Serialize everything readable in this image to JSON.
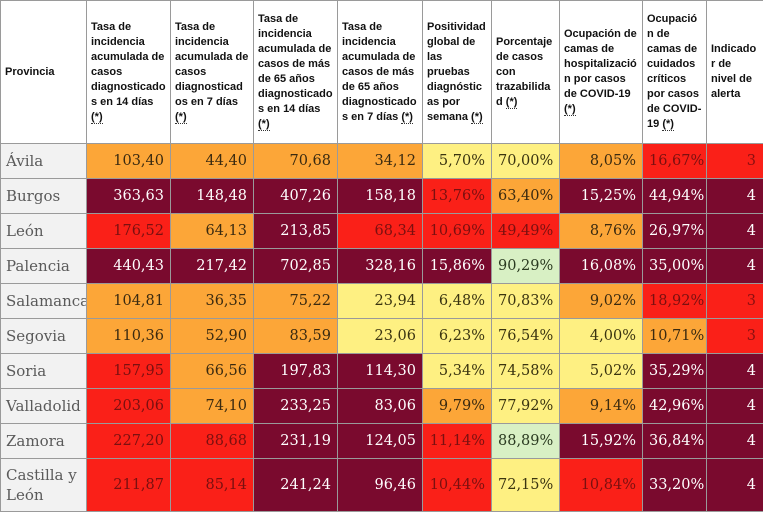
{
  "headers": {
    "provincia": "Provincia",
    "c1_text": "Tasa de incidencia acumulada de casos diagnosticados en 14 días",
    "c2_text": "Tasa de incidencia acumulada de casos diagnosticados en 7 días",
    "c3_text": "Tasa de incidencia acumulada de casos de más de 65 años diagnosticados en 14 días",
    "c4_text": "Tasa de incidencia acumulada de casos de más de 65 años diagnosticados en 7 días",
    "c5_text": "Positividad global de las pruebas diagnósticas por semana",
    "c6_text": "Porcentaje de casos con trazabilidad",
    "c7_text": "Ocupación de camas de hospitalización por casos de COVID-19",
    "c8_text": "Ocupación de camas de cuidados críticos por casos de COVID-19",
    "c9_text": "Indicador de nivel de alerta",
    "ref": "(*)"
  },
  "rows": [
    {
      "provincia": "Ávila",
      "c1": "103,40",
      "c2": "44,40",
      "c3": "70,68",
      "c4": "34,12",
      "c5": "5,70%",
      "c6": "70,00%",
      "c7": "8,05%",
      "c8": "16,67%",
      "ind": "3"
    },
    {
      "provincia": "Burgos",
      "c1": "363,63",
      "c2": "148,48",
      "c3": "407,26",
      "c4": "158,18",
      "c5": "13,76%",
      "c6": "63,40%",
      "c7": "15,25%",
      "c8": "44,94%",
      "ind": "4"
    },
    {
      "provincia": "León",
      "c1": "176,52",
      "c2": "64,13",
      "c3": "213,85",
      "c4": "68,34",
      "c5": "10,69%",
      "c6": "49,49%",
      "c7": "8,76%",
      "c8": "26,97%",
      "ind": "4"
    },
    {
      "provincia": "Palencia",
      "c1": "440,43",
      "c2": "217,42",
      "c3": "702,85",
      "c4": "328,16",
      "c5": "15,86%",
      "c6": "90,29%",
      "c7": "16,08%",
      "c8": "35,00%",
      "ind": "4"
    },
    {
      "provincia": "Salamanca",
      "c1": "104,81",
      "c2": "36,35",
      "c3": "75,22",
      "c4": "23,94",
      "c5": "6,48%",
      "c6": "70,83%",
      "c7": "9,02%",
      "c8": "18,92%",
      "ind": "3"
    },
    {
      "provincia": "Segovia",
      "c1": "110,36",
      "c2": "52,90",
      "c3": "83,59",
      "c4": "23,06",
      "c5": "6,23%",
      "c6": "76,54%",
      "c7": "4,00%",
      "c8": "10,71%",
      "ind": "3"
    },
    {
      "provincia": "Soria",
      "c1": "157,95",
      "c2": "66,56",
      "c3": "197,83",
      "c4": "114,30",
      "c5": "5,34%",
      "c6": "74,58%",
      "c7": "5,02%",
      "c8": "35,29%",
      "ind": "4"
    },
    {
      "provincia": "Valladolid",
      "c1": "203,06",
      "c2": "74,10",
      "c3": "233,25",
      "c4": "83,06",
      "c5": "9,79%",
      "c6": "77,92%",
      "c7": "9,14%",
      "c8": "42,96%",
      "ind": "4"
    },
    {
      "provincia": "Zamora",
      "c1": "227,20",
      "c2": "88,68",
      "c3": "231,19",
      "c4": "124,05",
      "c5": "11,14%",
      "c6": "88,89%",
      "c7": "15,92%",
      "c8": "36,84%",
      "ind": "4"
    },
    {
      "provincia": "Castilla y León",
      "c1": "211,87",
      "c2": "85,14",
      "c3": "241,24",
      "c4": "96,46",
      "c5": "10,44%",
      "c6": "72,15%",
      "c7": "10,84%",
      "c8": "33,20%",
      "ind": "4"
    }
  ],
  "colors": {
    "dark_red": "#7a0a2e",
    "red": "#fa2018",
    "orange": "#fca638",
    "yellow": "#fef082",
    "green": "#d8f0c4",
    "province_bg": "#f2f2f2"
  }
}
